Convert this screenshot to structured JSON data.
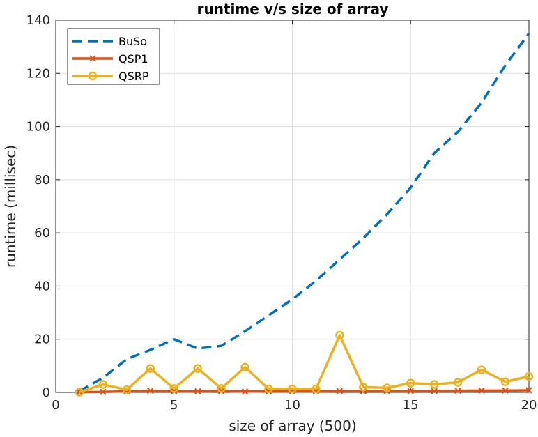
{
  "chart_data": {
    "type": "line",
    "title": "runtime v/s size of array",
    "xlabel": "size of array (500)",
    "ylabel": "runtime (millisec)",
    "xlim": [
      0,
      20
    ],
    "ylim": [
      0,
      140
    ],
    "xticks": [
      0,
      5,
      10,
      15,
      20
    ],
    "yticks": [
      0,
      20,
      40,
      60,
      80,
      100,
      120,
      140
    ],
    "grid": true,
    "legend_position": "top-left",
    "x": [
      1,
      2,
      3,
      4,
      5,
      6,
      7,
      8,
      9,
      10,
      11,
      12,
      13,
      14,
      15,
      16,
      17,
      18,
      19,
      20
    ],
    "series": [
      {
        "name": "BuSo",
        "color": "#0072BD",
        "line_style": "dashed",
        "marker": "none",
        "values": [
          0.5,
          5.5,
          12.5,
          16,
          20,
          16.5,
          17.5,
          23,
          29,
          35,
          42,
          50,
          58,
          67,
          77,
          90,
          98,
          109,
          123,
          135
        ]
      },
      {
        "name": "QSP1",
        "color": "#D95319",
        "line_style": "solid",
        "marker": "x",
        "values": [
          0.1,
          0.2,
          0.4,
          0.6,
          0.4,
          0.4,
          0.5,
          0.3,
          0.4,
          0.4,
          0.4,
          0.5,
          0.5,
          0.5,
          0.5,
          0.5,
          0.6,
          0.7,
          0.7,
          0.8
        ]
      },
      {
        "name": "QSRP",
        "color": "#EDB120",
        "line_style": "solid",
        "marker": "circle",
        "values": [
          0.1,
          3,
          1,
          9,
          1.5,
          9,
          1.5,
          9.5,
          1.3,
          1.3,
          1.3,
          21.5,
          2,
          1.7,
          3.5,
          3,
          3.8,
          8.5,
          4,
          6
        ]
      }
    ]
  }
}
